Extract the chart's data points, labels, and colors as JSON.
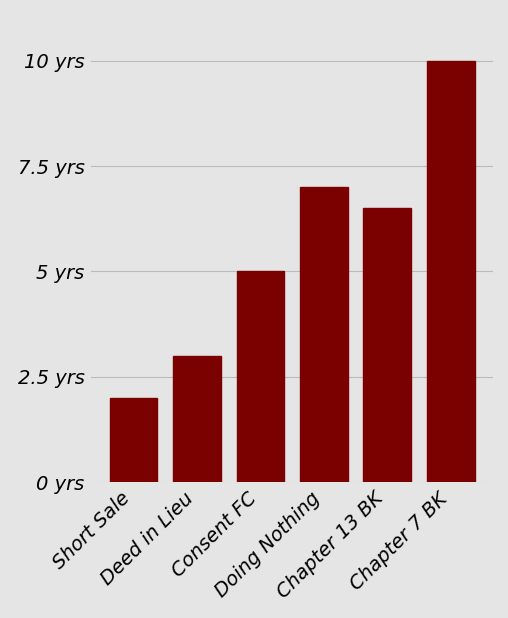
{
  "categories": [
    "Short Sale",
    "Deed in Lieu",
    "Consent FC",
    "Doing Nothing",
    "Chapter 13 BK",
    "Chapter 7 BK"
  ],
  "values": [
    2.0,
    3.0,
    5.0,
    7.0,
    6.5,
    10.0
  ],
  "bar_color": "#7B0000",
  "background_color": "#E5E5E5",
  "ytick_labels": [
    "0 yrs",
    "2.5 yrs",
    "5 yrs",
    "7.5 yrs",
    "10 yrs"
  ],
  "ytick_values": [
    0,
    2.5,
    5,
    7.5,
    10
  ],
  "ylim": [
    0,
    11.0
  ],
  "grid_color": "#BBBBBB",
  "tick_label_fontsize": 14,
  "bar_width": 0.75
}
